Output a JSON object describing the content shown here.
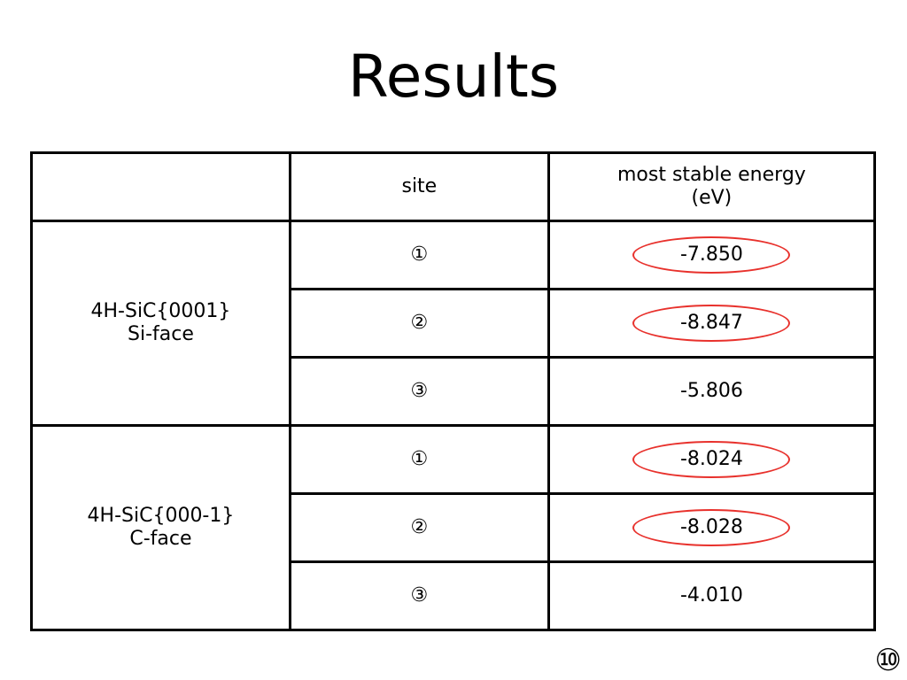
{
  "slide": {
    "title": "Results",
    "page_number": "⑩"
  },
  "table": {
    "header": {
      "group": "",
      "site": "site",
      "energy_line1": "most stable energy",
      "energy_line2": "(eV)"
    },
    "groups": [
      {
        "label_line1": "4H-SiC{0001}",
        "label_line2": "Si-face",
        "rows": [
          {
            "site": "①",
            "energy": "-7.850",
            "highlighted": true
          },
          {
            "site": "②",
            "energy": "-8.847",
            "highlighted": true
          },
          {
            "site": "③",
            "energy": "-5.806",
            "highlighted": false
          }
        ]
      },
      {
        "label_line1": "4H-SiC{000-1}",
        "label_line2": "C-face",
        "rows": [
          {
            "site": "①",
            "energy": "-8.024",
            "highlighted": true
          },
          {
            "site": "②",
            "energy": "-8.028",
            "highlighted": true
          },
          {
            "site": "③",
            "energy": "-4.010",
            "highlighted": false
          }
        ]
      }
    ],
    "highlight_color": "#e8312c"
  }
}
